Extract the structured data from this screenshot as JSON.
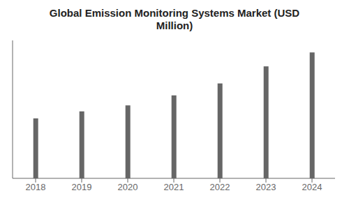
{
  "chart_data": {
    "type": "bar",
    "title": "Global Emission Monitoring Systems Market (USD\nMillion)",
    "categories": [
      "2018",
      "2019",
      "2020",
      "2021",
      "2022",
      "2023",
      "2024"
    ],
    "values": [
      3.0,
      3.35,
      3.65,
      4.15,
      4.75,
      5.6,
      6.3
    ],
    "color": "#666666",
    "ylim": [
      0,
      6.9
    ],
    "grid": false,
    "tick_labels": "x"
  }
}
